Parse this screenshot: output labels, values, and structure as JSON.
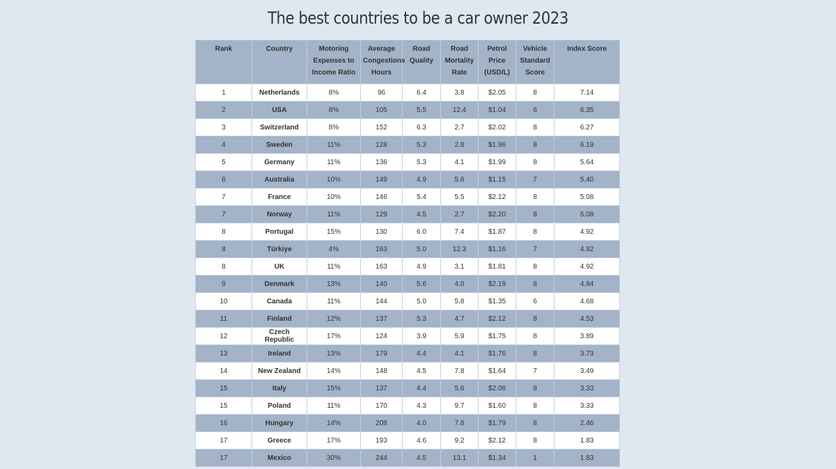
{
  "header": {
    "title": "The best countries to be a car owner 2023"
  },
  "table": {
    "headers": [
      "Rank",
      "Country",
      "Motoring Expenses to Income Ratio",
      "Average Congestions Hours",
      "Road Quality",
      "Road Mortality Rate",
      "Petrol Price (USD/L)",
      "Vehicle Standard Score",
      "Index Score"
    ],
    "rows": [
      [
        "1",
        "Netherlands",
        "8%",
        "96",
        "6.4",
        "3.8",
        "$2.05",
        "8",
        "7.14"
      ],
      [
        "2",
        "USA",
        "8%",
        "105",
        "5.5",
        "12.4",
        "$1.04",
        "6",
        "6.35"
      ],
      [
        "3",
        "Switzerland",
        "8%",
        "152",
        "6.3",
        "2.7",
        "$2.02",
        "8",
        "6.27"
      ],
      [
        "4",
        "Sweden",
        "11%",
        "128",
        "5.3",
        "2.8",
        "$1.96",
        "8",
        "6.19"
      ],
      [
        "5",
        "Germany",
        "11%",
        "136",
        "5.3",
        "4.1",
        "$1.99",
        "8",
        "5.64"
      ],
      [
        "6",
        "Australia",
        "10%",
        "149",
        "4.9",
        "5.6",
        "$1.15",
        "7",
        "5.40"
      ],
      [
        "7",
        "France",
        "10%",
        "146",
        "5.4",
        "5.5",
        "$2.12",
        "8",
        "5.08"
      ],
      [
        "7",
        "Norway",
        "11%",
        "129",
        "4.5",
        "2.7",
        "$2.20",
        "8",
        "5.08"
      ],
      [
        "8",
        "Portugal",
        "15%",
        "130",
        "6.0",
        "7.4",
        "$1.87",
        "8",
        "4.92"
      ],
      [
        "8",
        "Türkiye",
        "4%",
        "163",
        "5.0",
        "12.3",
        "$1.16",
        "7",
        "4.92"
      ],
      [
        "8",
        "UK",
        "11%",
        "163",
        "4.9",
        "3.1",
        "$1.81",
        "8",
        "4.92"
      ],
      [
        "9",
        "Denmark",
        "13%",
        "140",
        "5.6",
        "4.0",
        "$2.19",
        "8",
        "4.84"
      ],
      [
        "10",
        "Canada",
        "11%",
        "144",
        "5.0",
        "5.8",
        "$1.35",
        "6",
        "4.68"
      ],
      [
        "11",
        "Finland",
        "12%",
        "137",
        "5.3",
        "4.7",
        "$2.12",
        "8",
        "4.53"
      ],
      [
        "12",
        "Czech Republic",
        "17%",
        "124",
        "3.9",
        "5.9",
        "$1.75",
        "8",
        "3.89"
      ],
      [
        "13",
        "Ireland",
        "13%",
        "179",
        "4.4",
        "4.1",
        "$1.76",
        "8",
        "3.73"
      ],
      [
        "14",
        "New Zealand",
        "14%",
        "148",
        "4.5",
        "7.8",
        "$1.64",
        "7",
        "3.49"
      ],
      [
        "15",
        "Italy",
        "15%",
        "137",
        "4.4",
        "5.6",
        "$2.06",
        "8",
        "3.33"
      ],
      [
        "15",
        "Poland",
        "11%",
        "170",
        "4.3",
        "9.7",
        "$1.60",
        "8",
        "3.33"
      ],
      [
        "16",
        "Hungary",
        "14%",
        "208",
        "4.0",
        "7.8",
        "$1.79",
        "8",
        "2.46"
      ],
      [
        "17",
        "Greece",
        "17%",
        "193",
        "4.6",
        "9.2",
        "$2.12",
        "8",
        "1.83"
      ],
      [
        "17",
        "Mexico",
        "30%",
        "244",
        "4.5",
        "13.1",
        "$1.34",
        "1",
        "1.83"
      ]
    ]
  }
}
